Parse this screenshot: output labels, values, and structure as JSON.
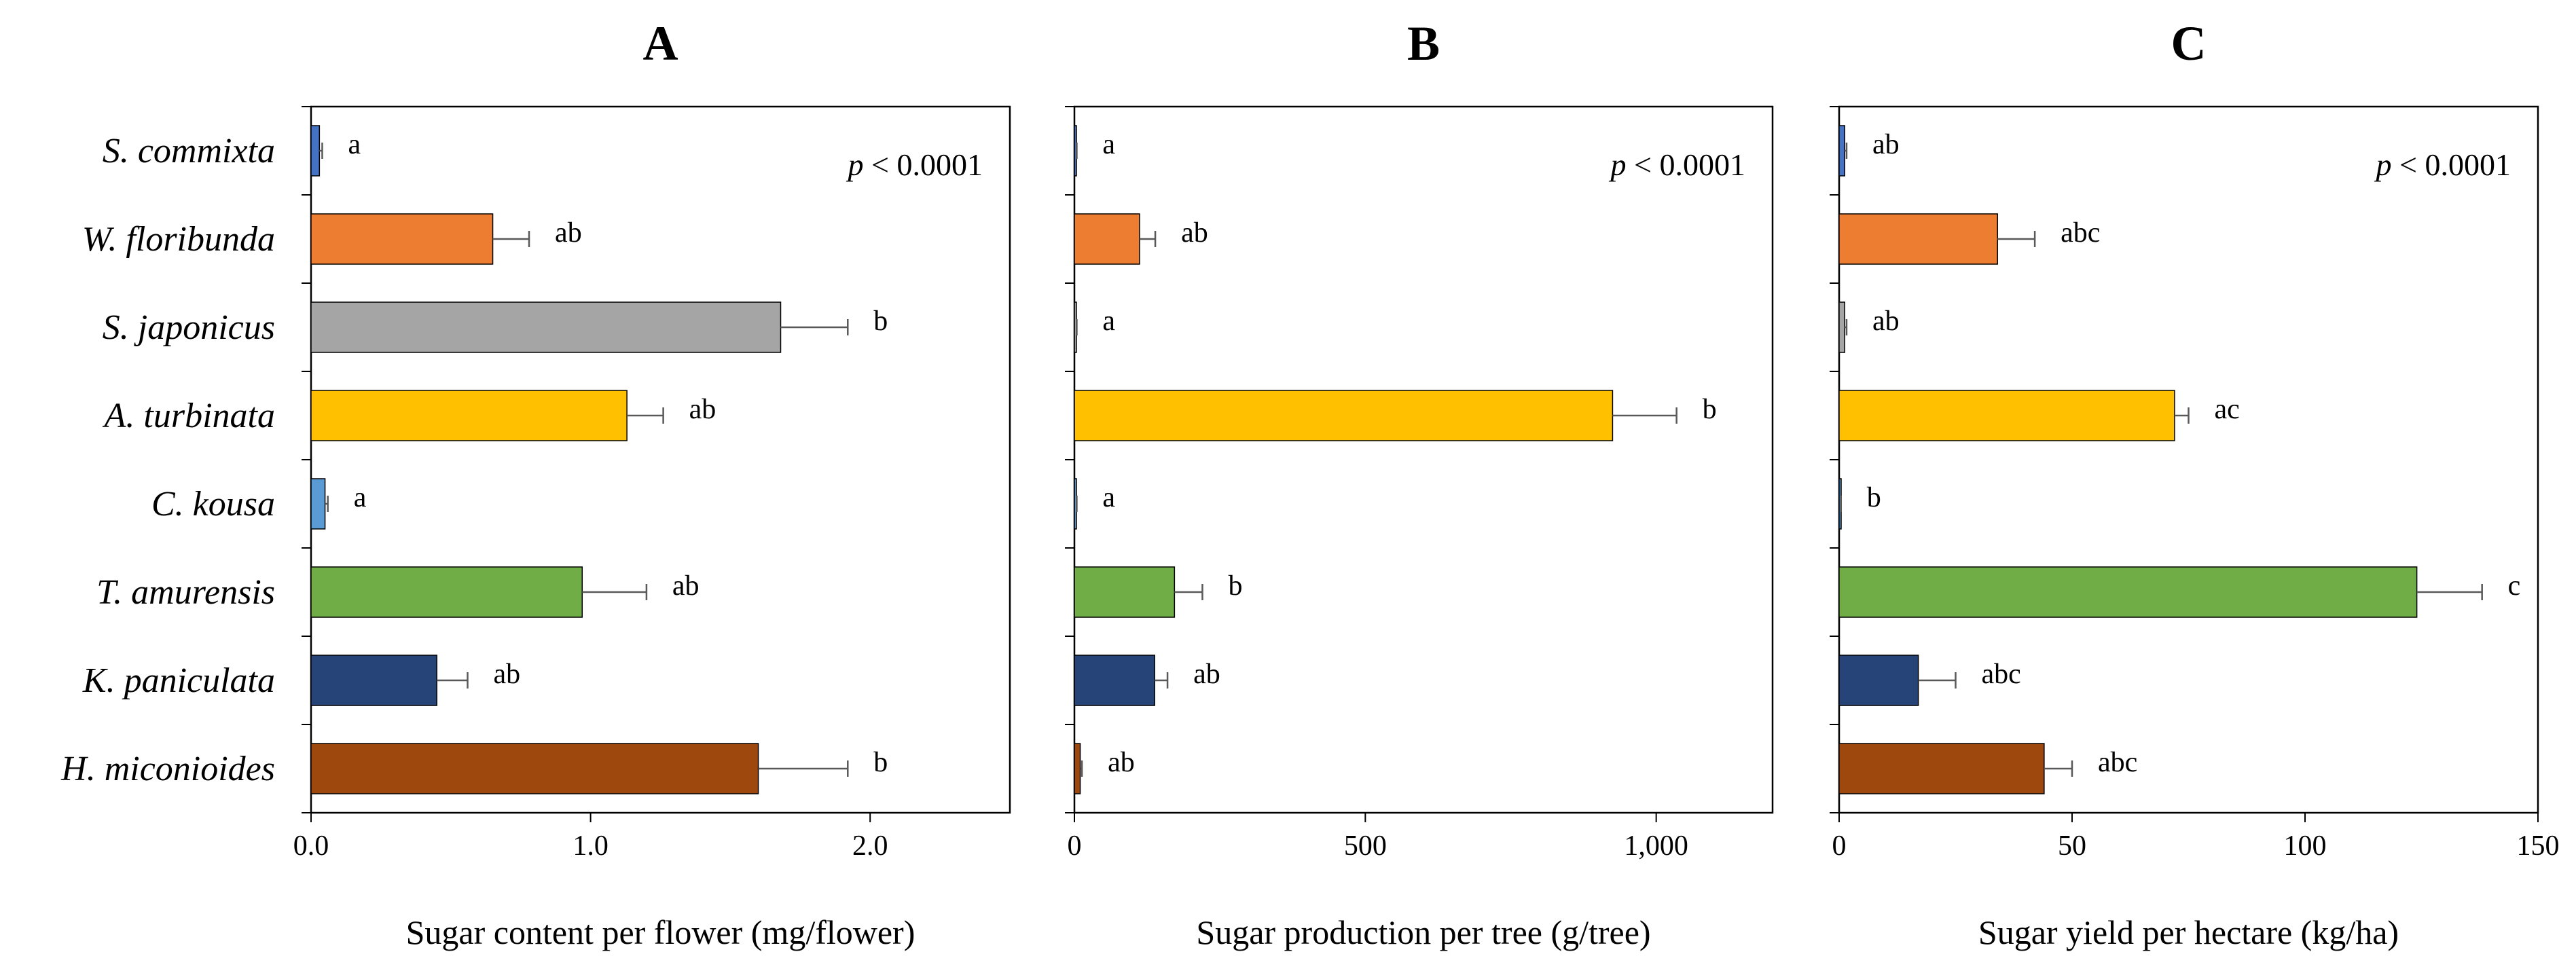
{
  "species": [
    "S. commixta",
    "W. floribunda",
    "S. japonicus",
    "A. turbinata",
    "C. kousa",
    "T. amurensis",
    "K. paniculata",
    "H. miconioides"
  ],
  "colors": [
    "#4472C4",
    "#ED7D31",
    "#A5A5A5",
    "#FFC000",
    "#5B9BD5",
    "#70AD47",
    "#264478",
    "#9E480E"
  ],
  "chart_data": [
    {
      "type": "bar",
      "panel": "A",
      "title": "A",
      "xlabel": "Sugar content per flower (mg/flower)",
      "xlim": [
        0,
        2.5
      ],
      "ticks": [
        0,
        1,
        2
      ],
      "tick_labels": [
        "0.0",
        "1.0",
        "2.0"
      ],
      "p_value": {
        "p": "p",
        "rest": " < 0.0001"
      },
      "values": [
        0.03,
        0.65,
        1.68,
        1.13,
        0.05,
        0.97,
        0.45,
        1.6
      ],
      "errors": [
        0.01,
        0.13,
        0.24,
        0.13,
        0.01,
        0.23,
        0.11,
        0.32
      ],
      "letters": [
        "a",
        "ab",
        "b",
        "ab",
        "a",
        "ab",
        "ab",
        "b"
      ]
    },
    {
      "type": "bar",
      "panel": "B",
      "title": "B",
      "xlabel": "Sugar production per tree (g/tree)",
      "xlim": [
        0,
        1200
      ],
      "ticks": [
        0,
        500,
        1000
      ],
      "tick_labels": [
        "0",
        "500",
        "1,000"
      ],
      "p_value": {
        "p": "p",
        "rest": " < 0.0001"
      },
      "values": [
        3,
        112,
        3,
        925,
        3,
        172,
        138,
        10
      ],
      "errors": [
        1,
        27,
        1,
        110,
        1,
        48,
        22,
        3
      ],
      "letters": [
        "a",
        "ab",
        "a",
        "b",
        "a",
        "b",
        "ab",
        "ab"
      ]
    },
    {
      "type": "bar",
      "panel": "C",
      "title": "C",
      "xlabel": "Sugar yield per hectare (kg/ha)",
      "xlim": [
        0,
        150
      ],
      "ticks": [
        0,
        50,
        100,
        150
      ],
      "tick_labels": [
        "0",
        "50",
        "100",
        "150"
      ],
      "p_value": {
        "p": "p",
        "rest": " < 0.0001"
      },
      "values": [
        1.2,
        34,
        1.2,
        72,
        0.3,
        124,
        17,
        44
      ],
      "errors": [
        0.4,
        8,
        0.4,
        3,
        0.1,
        14,
        8,
        6
      ],
      "letters": [
        "ab",
        "abc",
        "ab",
        "ac",
        "b",
        "c",
        "abc",
        "abc"
      ]
    }
  ]
}
